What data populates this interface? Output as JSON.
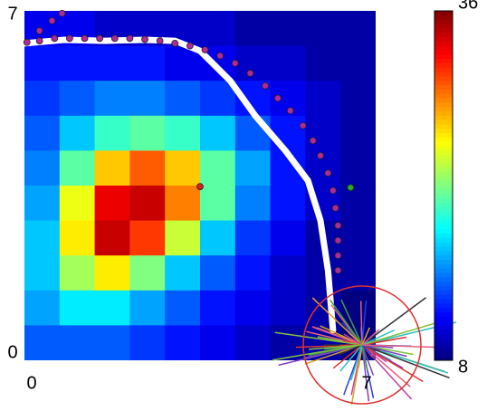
{
  "chart_data": {
    "type": "heatmap",
    "xlim": [
      0,
      7
    ],
    "ylim": [
      0,
      7
    ],
    "xticks": [
      0,
      7
    ],
    "yticks": [
      0,
      7
    ],
    "clim": [
      8,
      36
    ],
    "cticks": [
      8,
      36
    ],
    "colormap": "jet",
    "z": [
      [
        11,
        11,
        10,
        10,
        10,
        10,
        9,
        9,
        9,
        9
      ],
      [
        12,
        12,
        12,
        12,
        11,
        11,
        10,
        10,
        9,
        9
      ],
      [
        13,
        14,
        15,
        15,
        14,
        13,
        12,
        11,
        10,
        9
      ],
      [
        14,
        17,
        20,
        21,
        20,
        17,
        14,
        12,
        10,
        9
      ],
      [
        15,
        21,
        27,
        30,
        27,
        21,
        16,
        12,
        10,
        9
      ],
      [
        16,
        25,
        33,
        34,
        29,
        21,
        15,
        12,
        10,
        9
      ],
      [
        17,
        26,
        34,
        31,
        24,
        17,
        13,
        11,
        9,
        9
      ],
      [
        17,
        23,
        26,
        22,
        17,
        14,
        12,
        10,
        9,
        9
      ],
      [
        16,
        18,
        18,
        16,
        14,
        12,
        11,
        10,
        9,
        8
      ],
      [
        14,
        14,
        14,
        13,
        12,
        11,
        10,
        9,
        9,
        8
      ]
    ],
    "path": {
      "color": "#ffffff",
      "x": [
        0,
        0.8,
        1.6,
        2.4,
        3.0,
        3.5,
        4.1,
        4.6,
        5.2,
        5.65,
        5.9,
        6.05,
        6.15
      ],
      "y": [
        6.35,
        6.42,
        6.4,
        6.42,
        6.4,
        6.2,
        5.6,
        4.9,
        4.2,
        3.6,
        2.8,
        1.8,
        0.6
      ]
    },
    "dots": {
      "color": "#b02a9a",
      "x": [
        0.75,
        0.55,
        0.3,
        0.05,
        0.3,
        0.6,
        0.9,
        1.2,
        1.5,
        1.8,
        2.1,
        2.4,
        2.7,
        3.0,
        3.3,
        3.6,
        3.9,
        4.2,
        4.5,
        4.8,
        5.05,
        5.3,
        5.55,
        5.75,
        5.9,
        6.05,
        6.15,
        6.2,
        6.25,
        6.25,
        6.25,
        6.25
      ],
      "y": [
        6.95,
        6.8,
        6.6,
        6.37,
        6.4,
        6.45,
        6.45,
        6.45,
        6.45,
        6.45,
        6.45,
        6.43,
        6.4,
        6.35,
        6.3,
        6.22,
        6.1,
        5.95,
        5.75,
        5.5,
        5.25,
        5.0,
        4.7,
        4.4,
        4.1,
        3.75,
        3.4,
        3.05,
        2.7,
        2.4,
        2.1,
        1.8
      ]
    },
    "markers": {
      "colors": [
        "#d02020",
        "#20b020"
      ],
      "x": [
        3.5,
        6.5
      ],
      "y": [
        3.48,
        3.46
      ]
    }
  }
}
